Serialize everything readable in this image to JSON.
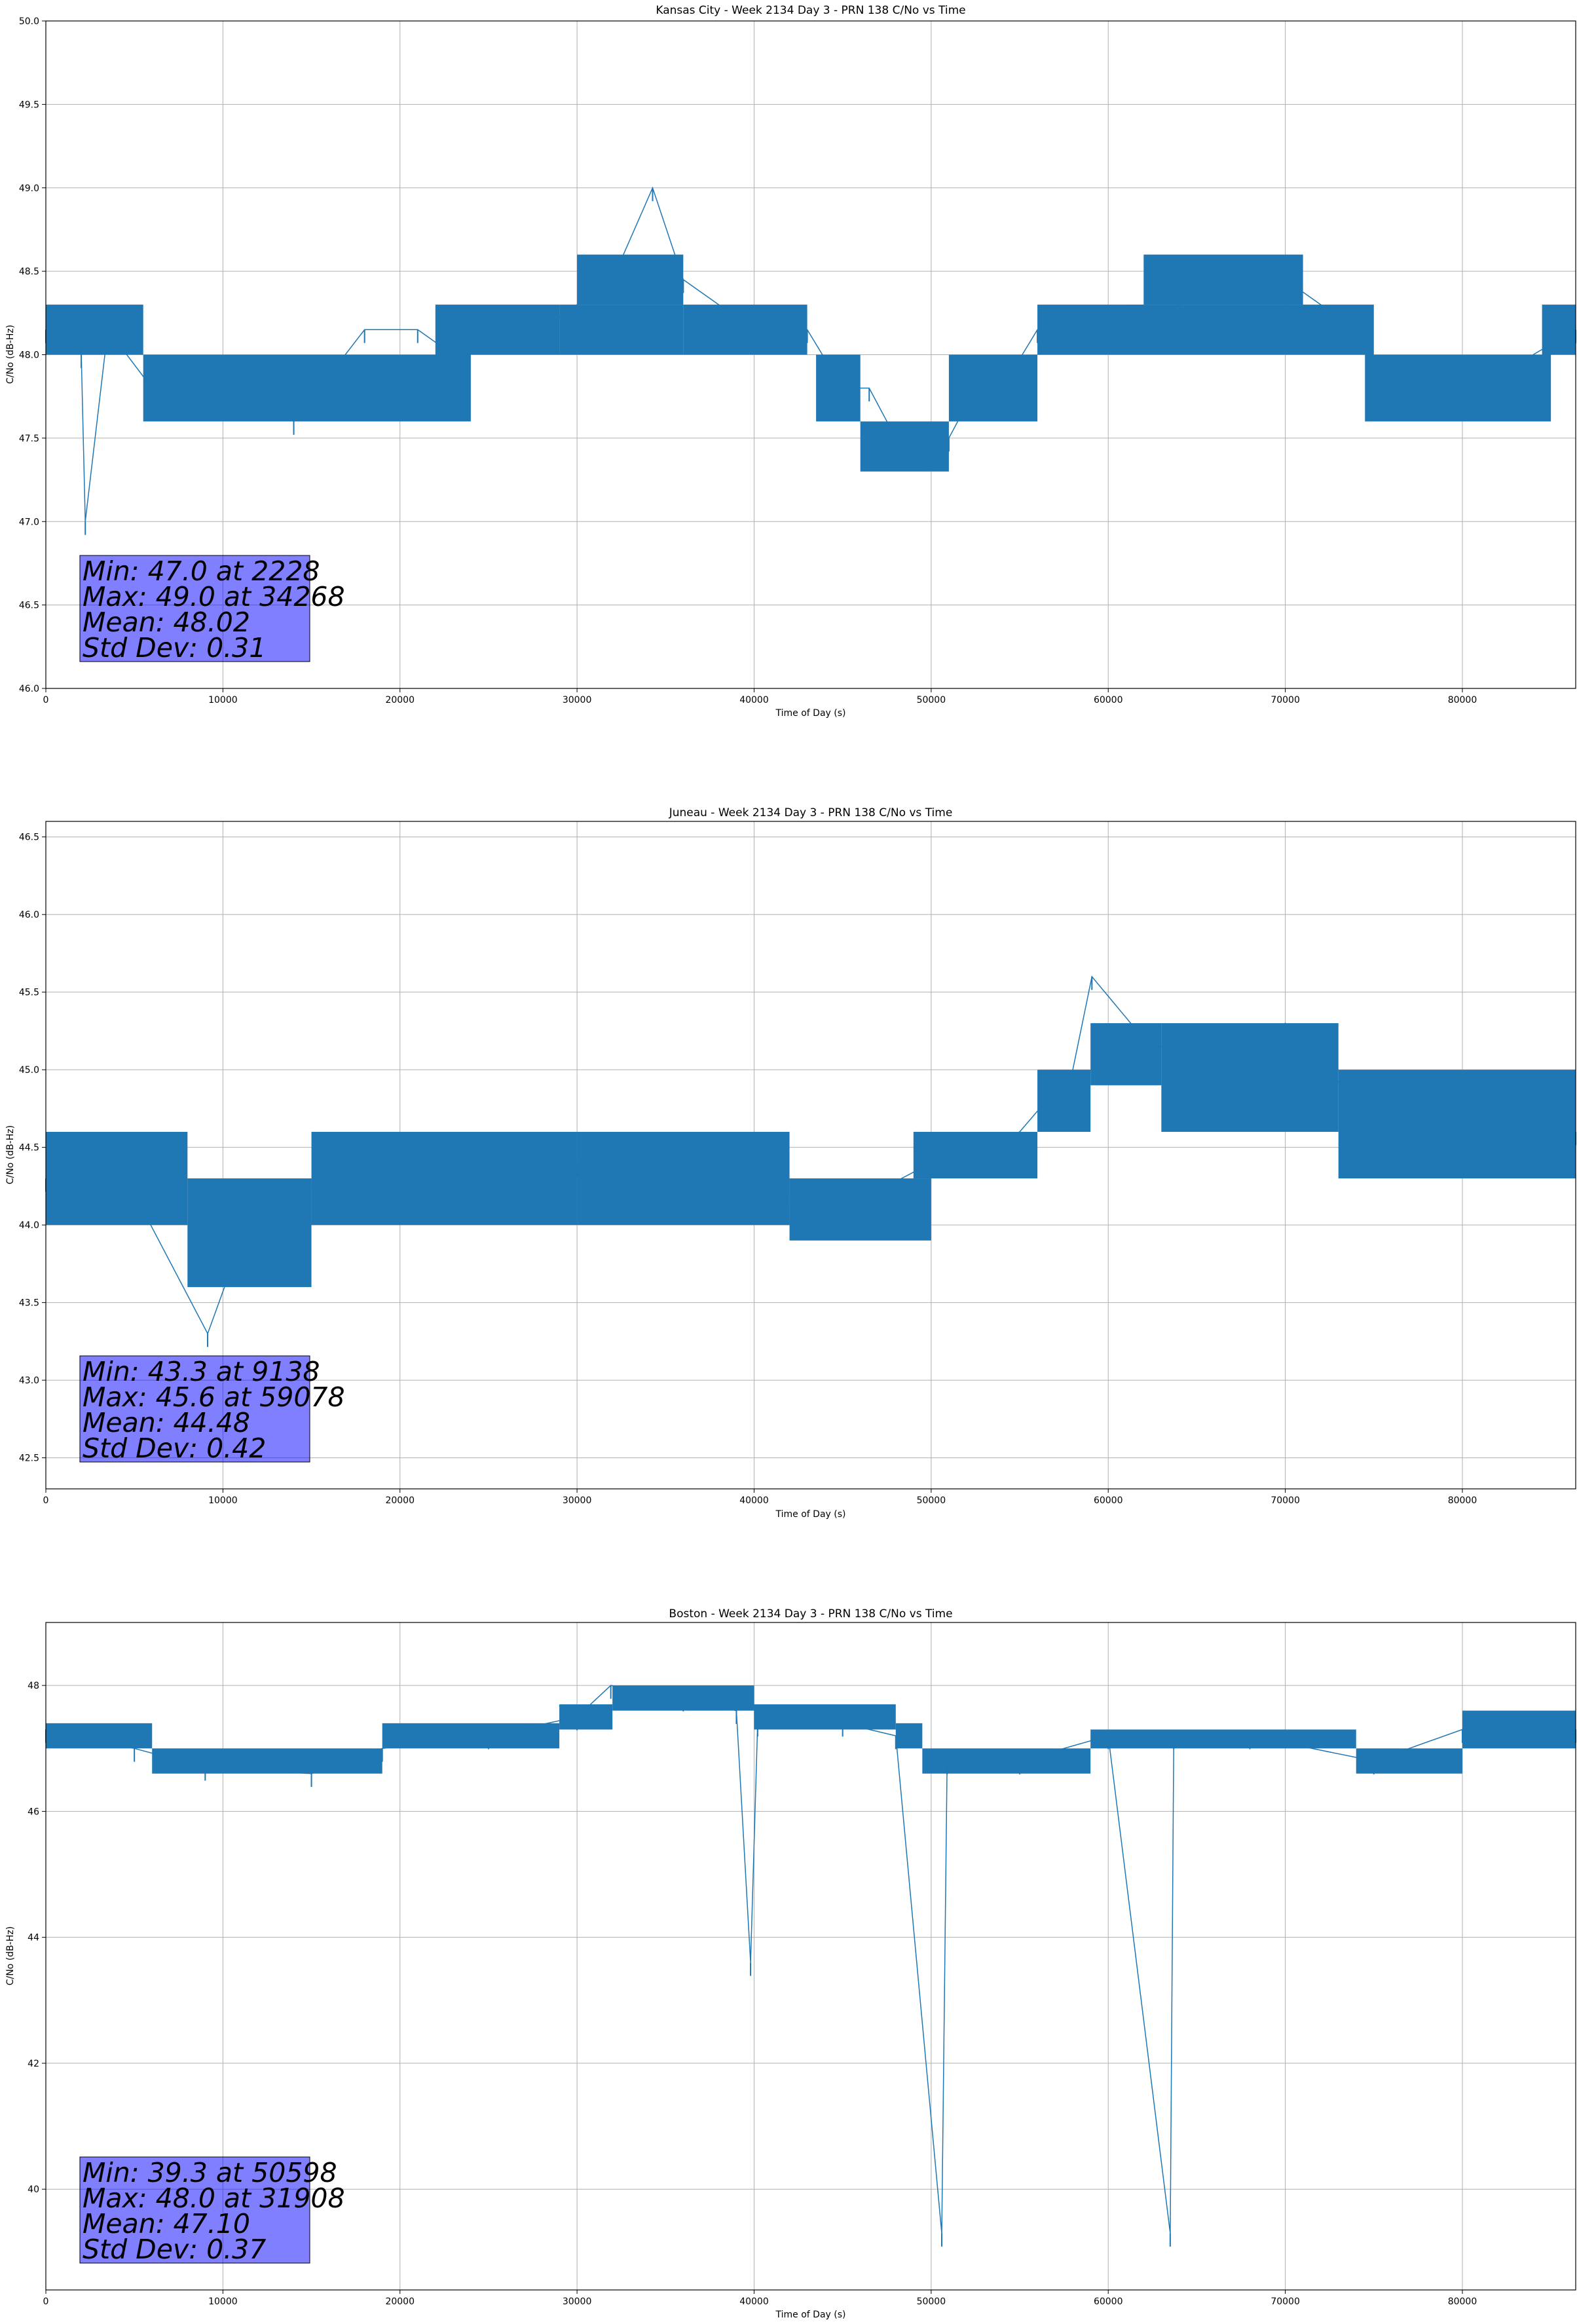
{
  "chart_data": [
    {
      "type": "line",
      "title": "Kansas City - Week 2134 Day 3 - PRN 138 C/No vs Time",
      "xlabel": "Time of Day (s)",
      "ylabel": "C/No (dB-Hz)",
      "xlim": [
        0,
        86400
      ],
      "ylim": [
        46.0,
        50.0
      ],
      "xticks": [
        0,
        10000,
        20000,
        30000,
        40000,
        50000,
        60000,
        70000,
        80000
      ],
      "yticks": [
        46.0,
        46.5,
        47.0,
        47.5,
        48.0,
        48.5,
        49.0,
        49.5,
        50.0
      ],
      "ytick_decimals": 1,
      "grid": true,
      "color": "#1f77b4",
      "series": [
        {
          "name": "",
          "x": [
            0,
            2000,
            2228,
            3500,
            6000,
            9000,
            12000,
            14000,
            18000,
            21000,
            23000,
            26000,
            28000,
            30000,
            32000,
            34268,
            36000,
            38000,
            40000,
            43000,
            45000,
            46500,
            48000,
            49500,
            51000,
            52500,
            54000,
            56000,
            58000,
            60000,
            62000,
            64000,
            66000,
            68000,
            70000,
            72000,
            74000,
            76000,
            78000,
            80000,
            82000,
            84000,
            86400
          ],
          "y": [
            48.15,
            48.0,
            47.0,
            48.15,
            47.8,
            47.8,
            47.8,
            47.6,
            48.15,
            48.15,
            48.0,
            48.15,
            48.15,
            48.3,
            48.45,
            49.0,
            48.45,
            48.3,
            48.15,
            48.15,
            47.8,
            47.8,
            47.5,
            47.4,
            47.5,
            47.8,
            47.8,
            48.15,
            48.15,
            48.15,
            48.15,
            48.3,
            48.45,
            48.45,
            48.45,
            48.3,
            48.15,
            47.8,
            47.8,
            47.8,
            47.8,
            48.0,
            48.15
          ]
        }
      ],
      "band_bands": [
        [
          0,
          5500,
          48.0,
          48.3
        ],
        [
          5500,
          24000,
          47.6,
          48.0
        ],
        [
          22000,
          29000,
          48.0,
          48.3
        ],
        [
          29000,
          36000,
          48.0,
          48.3
        ],
        [
          30000,
          36000,
          48.3,
          48.6
        ],
        [
          36000,
          43000,
          48.0,
          48.3
        ],
        [
          43500,
          46000,
          47.6,
          48.0
        ],
        [
          46000,
          51000,
          47.3,
          47.6
        ],
        [
          51000,
          56000,
          47.6,
          48.0
        ],
        [
          56000,
          62000,
          48.0,
          48.3
        ],
        [
          62000,
          71000,
          48.3,
          48.6
        ],
        [
          61000,
          75000,
          48.0,
          48.3
        ],
        [
          74500,
          85000,
          47.6,
          48.0
        ],
        [
          84500,
          86400,
          48.0,
          48.3
        ]
      ],
      "stats": {
        "min": "Min: 47.0 at 2228",
        "max": "Max: 49.0 at 34268",
        "mean": "Mean: 48.02",
        "std": "Std Dev: 0.31"
      }
    },
    {
      "type": "line",
      "title": "Juneau - Week 2134 Day 3 - PRN 138 C/No vs Time",
      "xlabel": "Time of Day (s)",
      "ylabel": "C/No (dB-Hz)",
      "xlim": [
        0,
        86400
      ],
      "ylim": [
        42.3,
        46.6
      ],
      "xticks": [
        0,
        10000,
        20000,
        30000,
        40000,
        50000,
        60000,
        70000,
        80000
      ],
      "yticks": [
        42.5,
        43.0,
        43.5,
        44.0,
        44.5,
        45.0,
        45.5,
        46.0,
        46.5
      ],
      "ytick_decimals": 1,
      "grid": true,
      "color": "#1f77b4",
      "series": [
        {
          "name": "",
          "x": [
            0,
            5000,
            9138,
            12000,
            20000,
            30000,
            32000,
            40000,
            45000,
            50000,
            55000,
            58000,
            59078,
            62000,
            66000,
            70000,
            74000,
            78000,
            82000,
            86400
          ],
          "y": [
            44.3,
            44.2,
            43.3,
            44.2,
            44.3,
            44.4,
            44.2,
            44.2,
            44.1,
            44.4,
            44.6,
            45.0,
            45.6,
            45.2,
            45.0,
            45.3,
            44.8,
            44.6,
            44.7,
            44.6
          ]
        }
      ],
      "band_bands": [
        [
          0,
          8000,
          44.0,
          44.6
        ],
        [
          8000,
          15000,
          43.6,
          44.3
        ],
        [
          15000,
          30000,
          44.0,
          44.6
        ],
        [
          30000,
          42000,
          44.0,
          44.6
        ],
        [
          42000,
          50000,
          43.9,
          44.3
        ],
        [
          49000,
          56000,
          44.3,
          44.6
        ],
        [
          56000,
          59000,
          44.6,
          45.0
        ],
        [
          59000,
          63000,
          44.9,
          45.3
        ],
        [
          63000,
          73000,
          44.6,
          45.3
        ],
        [
          73000,
          80000,
          44.3,
          45.0
        ],
        [
          80000,
          86400,
          44.3,
          45.0
        ]
      ],
      "stats": {
        "min": "Min: 43.3 at 9138",
        "max": "Max: 45.6 at 59078",
        "mean": "Mean: 44.48",
        "std": "Std Dev: 0.42"
      }
    },
    {
      "type": "line",
      "title": "Boston - Week 2134 Day 3 - PRN 138 C/No vs Time",
      "xlabel": "Time of Day (s)",
      "ylabel": "C/No (dB-Hz)",
      "xlim": [
        0,
        86400
      ],
      "ylim": [
        38.4,
        49.0
      ],
      "xticks": [
        0,
        10000,
        20000,
        30000,
        40000,
        50000,
        60000,
        70000,
        80000
      ],
      "yticks": [
        40,
        42,
        44,
        46,
        48
      ],
      "ytick_decimals": 0,
      "grid": true,
      "color": "#1f77b4",
      "series": [
        {
          "name": "",
          "x": [
            0,
            5000,
            9000,
            15000,
            19000,
            25000,
            30000,
            31908,
            36000,
            39000,
            39800,
            40200,
            45000,
            48000,
            50598,
            50900,
            55000,
            60000,
            63500,
            63700,
            68000,
            75000,
            80000,
            86400
          ],
          "y": [
            47.3,
            47.0,
            46.7,
            46.6,
            47.0,
            47.2,
            47.5,
            48.0,
            47.8,
            47.6,
            43.6,
            47.4,
            47.4,
            47.2,
            39.3,
            46.8,
            46.8,
            47.2,
            39.3,
            47.2,
            47.2,
            46.8,
            47.3,
            47.3
          ]
        }
      ],
      "band_bands": [
        [
          0,
          6000,
          47.0,
          47.4
        ],
        [
          6000,
          19000,
          46.6,
          47.0
        ],
        [
          19000,
          29000,
          47.0,
          47.4
        ],
        [
          29000,
          32000,
          47.3,
          47.7
        ],
        [
          32000,
          40000,
          47.6,
          48.0
        ],
        [
          40000,
          48000,
          47.3,
          47.7
        ],
        [
          48000,
          49500,
          47.0,
          47.4
        ],
        [
          49500,
          59000,
          46.6,
          47.0
        ],
        [
          59000,
          74000,
          47.0,
          47.3
        ],
        [
          74000,
          80000,
          46.6,
          47.0
        ],
        [
          80000,
          86400,
          47.0,
          47.6
        ]
      ],
      "stats": {
        "min": "Min: 39.3 at 50598",
        "max": "Max: 48.0 at 31908",
        "mean": "Mean: 47.10",
        "std": "Std Dev: 0.37"
      }
    }
  ]
}
